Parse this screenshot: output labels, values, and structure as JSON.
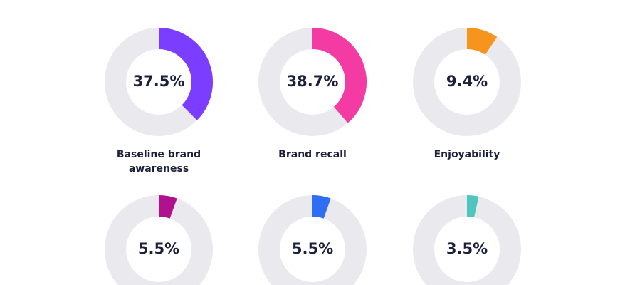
{
  "chart_data": [
    {
      "type": "donut",
      "title": "Baseline brand awareness",
      "values": [
        37.5
      ],
      "value_labels": [
        "37.5%"
      ],
      "color": "#7b3dff"
    },
    {
      "type": "donut",
      "title": "Brand recall",
      "values": [
        38.7
      ],
      "value_labels": [
        "38.7%"
      ],
      "color": "#f43ba4"
    },
    {
      "type": "donut",
      "title": "Enjoyability",
      "values": [
        9.4
      ],
      "value_labels": [
        "9.4%"
      ],
      "color": "#f7941d"
    },
    {
      "type": "donut",
      "values": [
        5.5
      ],
      "value_labels": [
        "5.5%"
      ],
      "color": "#b0128f"
    },
    {
      "type": "donut",
      "values": [
        5.5
      ],
      "value_labels": [
        "5.5%"
      ],
      "color": "#2f6ef3"
    },
    {
      "type": "donut",
      "values": [
        3.5
      ],
      "value_labels": [
        "3.5%"
      ],
      "color": "#4fc6bd"
    }
  ]
}
